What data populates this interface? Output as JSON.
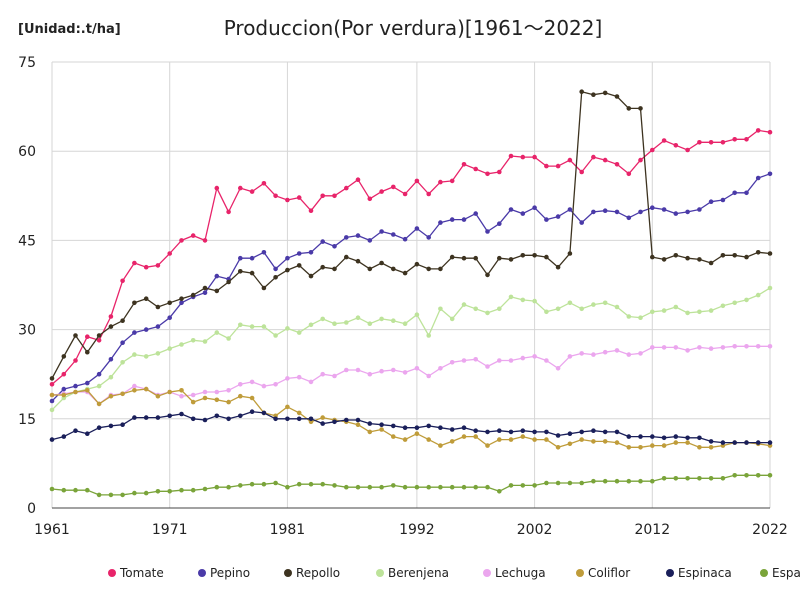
{
  "chart_data": {
    "type": "line",
    "title": "Produccion(Por verdura)[1961～2022]",
    "unit_label": "[Unidad:.t/ha]",
    "x": [
      1961,
      1962,
      1963,
      1964,
      1965,
      1966,
      1967,
      1968,
      1969,
      1970,
      1971,
      1972,
      1973,
      1974,
      1975,
      1976,
      1977,
      1978,
      1979,
      1980,
      1981,
      1982,
      1983,
      1984,
      1985,
      1986,
      1987,
      1988,
      1989,
      1990,
      1991,
      1992,
      1993,
      1994,
      1995,
      1996,
      1997,
      1998,
      1999,
      2000,
      2001,
      2002,
      2003,
      2004,
      2005,
      2006,
      2007,
      2008,
      2009,
      2010,
      2011,
      2012,
      2013,
      2014,
      2015,
      2016,
      2017,
      2018,
      2019,
      2020,
      2021,
      2022
    ],
    "x_ticks": [
      "1961",
      "1971",
      "1981",
      "1992",
      "2002",
      "2012",
      "2022"
    ],
    "x_tick_values": [
      1961,
      1971,
      1981,
      1992,
      2002,
      2012,
      2022
    ],
    "y_ticks": [
      "0",
      "15",
      "30",
      "45",
      "60",
      "75"
    ],
    "y_tick_values": [
      0,
      15,
      30,
      45,
      60,
      75
    ],
    "xlim": [
      1961,
      2022
    ],
    "ylim": [
      0,
      75
    ],
    "grid": true,
    "legend_position": "bottom",
    "series": [
      {
        "name": "Tomate",
        "color": "#e8246a",
        "values": [
          20.8,
          22.5,
          24.8,
          28.8,
          28.2,
          32.2,
          38.2,
          41.2,
          40.5,
          40.8,
          42.8,
          45.0,
          45.8,
          45.0,
          53.8,
          49.8,
          53.8,
          53.2,
          54.6,
          52.5,
          51.8,
          52.2,
          50.0,
          52.5,
          52.5,
          53.8,
          55.2,
          52.0,
          53.2,
          54.0,
          52.8,
          55.0,
          52.8,
          54.8,
          55.0,
          57.8,
          57.0,
          56.2,
          56.5,
          59.2,
          59.0,
          59.0,
          57.5,
          57.5,
          58.5,
          56.5,
          59.0,
          58.5,
          57.8,
          56.2,
          58.5,
          60.2,
          61.8,
          61.0,
          60.2,
          61.5,
          61.5,
          61.5,
          62.0,
          62.0,
          63.5,
          63.2
        ]
      },
      {
        "name": "Pepino",
        "color": "#4a3aa8",
        "values": [
          18.0,
          20.0,
          20.5,
          21.0,
          22.5,
          25.0,
          27.8,
          29.5,
          30.0,
          30.5,
          32.0,
          34.5,
          35.5,
          36.2,
          39.0,
          38.5,
          42.0,
          42.0,
          43.0,
          40.2,
          42.0,
          42.8,
          43.0,
          44.8,
          44.0,
          45.5,
          45.8,
          45.0,
          46.5,
          46.0,
          45.2,
          47.0,
          45.5,
          48.0,
          48.5,
          48.5,
          49.5,
          46.5,
          47.8,
          50.2,
          49.5,
          50.5,
          48.5,
          49.0,
          50.2,
          48.0,
          49.8,
          50.0,
          49.8,
          48.8,
          49.8,
          50.5,
          50.2,
          49.5,
          49.8,
          50.2,
          51.5,
          51.8,
          53.0,
          53.0,
          55.5,
          56.2
        ]
      },
      {
        "name": "Repollo",
        "color": "#3d3320",
        "values": [
          21.8,
          25.5,
          29.0,
          26.2,
          29.0,
          30.5,
          31.5,
          34.5,
          35.2,
          33.8,
          34.5,
          35.2,
          35.8,
          37.0,
          36.5,
          38.0,
          39.8,
          39.5,
          37.0,
          38.8,
          40.0,
          40.8,
          39.0,
          40.5,
          40.2,
          42.2,
          41.5,
          40.2,
          41.2,
          40.2,
          39.5,
          41.0,
          40.2,
          40.2,
          42.2,
          42.0,
          42.0,
          39.2,
          42.0,
          41.8,
          42.5,
          42.5,
          42.2,
          40.5,
          42.8,
          70.0,
          69.5,
          69.8,
          69.2,
          67.2,
          67.2,
          42.2,
          41.8,
          42.5,
          42.0,
          41.8,
          41.2,
          42.5,
          42.5,
          42.2,
          43.0,
          42.8
        ]
      },
      {
        "name": "Berenjena",
        "color": "#bde39a",
        "values": [
          16.5,
          18.5,
          19.5,
          20.0,
          20.5,
          22.0,
          24.5,
          25.8,
          25.5,
          26.0,
          26.8,
          27.5,
          28.2,
          28.0,
          29.5,
          28.5,
          30.8,
          30.5,
          30.5,
          29.0,
          30.2,
          29.5,
          30.8,
          31.8,
          31.0,
          31.2,
          32.0,
          31.0,
          31.8,
          31.5,
          31.0,
          32.5,
          29.0,
          33.5,
          31.8,
          34.2,
          33.5,
          32.8,
          33.5,
          35.5,
          35.0,
          34.8,
          33.0,
          33.5,
          34.5,
          33.5,
          34.2,
          34.5,
          33.8,
          32.2,
          32.0,
          33.0,
          33.2,
          33.8,
          32.8,
          33.0,
          33.2,
          34.0,
          34.5,
          35.0,
          35.8,
          37.0
        ]
      },
      {
        "name": "Lechuga",
        "color": "#eba6ee",
        "values": [
          19.0,
          19.2,
          19.5,
          19.5,
          17.5,
          19.0,
          19.2,
          20.5,
          20.0,
          19.0,
          19.5,
          18.8,
          19.0,
          19.5,
          19.5,
          19.8,
          20.8,
          21.2,
          20.5,
          20.8,
          21.8,
          22.0,
          21.2,
          22.5,
          22.2,
          23.2,
          23.2,
          22.5,
          23.0,
          23.2,
          22.8,
          23.5,
          22.2,
          23.5,
          24.5,
          24.8,
          25.0,
          23.8,
          24.8,
          24.8,
          25.2,
          25.5,
          24.8,
          23.5,
          25.5,
          26.0,
          25.8,
          26.2,
          26.5,
          25.8,
          26.0,
          27.0,
          27.0,
          27.0,
          26.5,
          27.0,
          26.8,
          27.0,
          27.2,
          27.2,
          27.2,
          27.2
        ]
      },
      {
        "name": "Coliflor",
        "color": "#bf9c3a",
        "values": [
          19.0,
          19.0,
          19.5,
          19.8,
          17.5,
          18.8,
          19.2,
          19.8,
          20.0,
          18.8,
          19.5,
          19.8,
          17.8,
          18.5,
          18.2,
          17.8,
          18.8,
          18.5,
          16.0,
          15.5,
          17.0,
          16.0,
          14.5,
          15.2,
          14.8,
          14.5,
          14.0,
          12.8,
          13.2,
          12.0,
          11.5,
          12.5,
          11.5,
          10.5,
          11.2,
          12.0,
          12.0,
          10.5,
          11.5,
          11.5,
          12.0,
          11.5,
          11.5,
          10.2,
          10.8,
          11.5,
          11.2,
          11.2,
          11.0,
          10.2,
          10.2,
          10.5,
          10.5,
          11.0,
          11.0,
          10.2,
          10.2,
          10.5,
          11.0,
          11.0,
          10.8,
          10.5
        ]
      },
      {
        "name": "Espinaca",
        "color": "#1a1f5a",
        "values": [
          11.5,
          12.0,
          13.0,
          12.5,
          13.5,
          13.8,
          14.0,
          15.2,
          15.2,
          15.2,
          15.5,
          15.8,
          15.0,
          14.8,
          15.5,
          15.0,
          15.5,
          16.2,
          16.0,
          15.0,
          15.0,
          15.0,
          15.0,
          14.2,
          14.5,
          14.8,
          14.8,
          14.2,
          14.0,
          13.8,
          13.5,
          13.5,
          13.8,
          13.5,
          13.2,
          13.5,
          13.0,
          12.8,
          13.0,
          12.8,
          13.0,
          12.8,
          12.8,
          12.2,
          12.5,
          12.8,
          13.0,
          12.8,
          12.8,
          12.0,
          12.0,
          12.0,
          11.8,
          12.0,
          11.8,
          11.8,
          11.2,
          11.0,
          11.0,
          11.0,
          11.0,
          11.0
        ]
      },
      {
        "name": "Esparragos",
        "color": "#7aa43a",
        "values": [
          3.2,
          3.0,
          3.0,
          3.0,
          2.2,
          2.2,
          2.2,
          2.5,
          2.5,
          2.8,
          2.8,
          3.0,
          3.0,
          3.2,
          3.5,
          3.5,
          3.8,
          4.0,
          4.0,
          4.2,
          3.5,
          4.0,
          4.0,
          4.0,
          3.8,
          3.5,
          3.5,
          3.5,
          3.5,
          3.8,
          3.5,
          3.5,
          3.5,
          3.5,
          3.5,
          3.5,
          3.5,
          3.5,
          2.8,
          3.8,
          3.8,
          3.8,
          4.2,
          4.2,
          4.2,
          4.2,
          4.5,
          4.5,
          4.5,
          4.5,
          4.5,
          4.5,
          5.0,
          5.0,
          5.0,
          5.0,
          5.0,
          5.0,
          5.5,
          5.5,
          5.5,
          5.5
        ]
      }
    ]
  }
}
